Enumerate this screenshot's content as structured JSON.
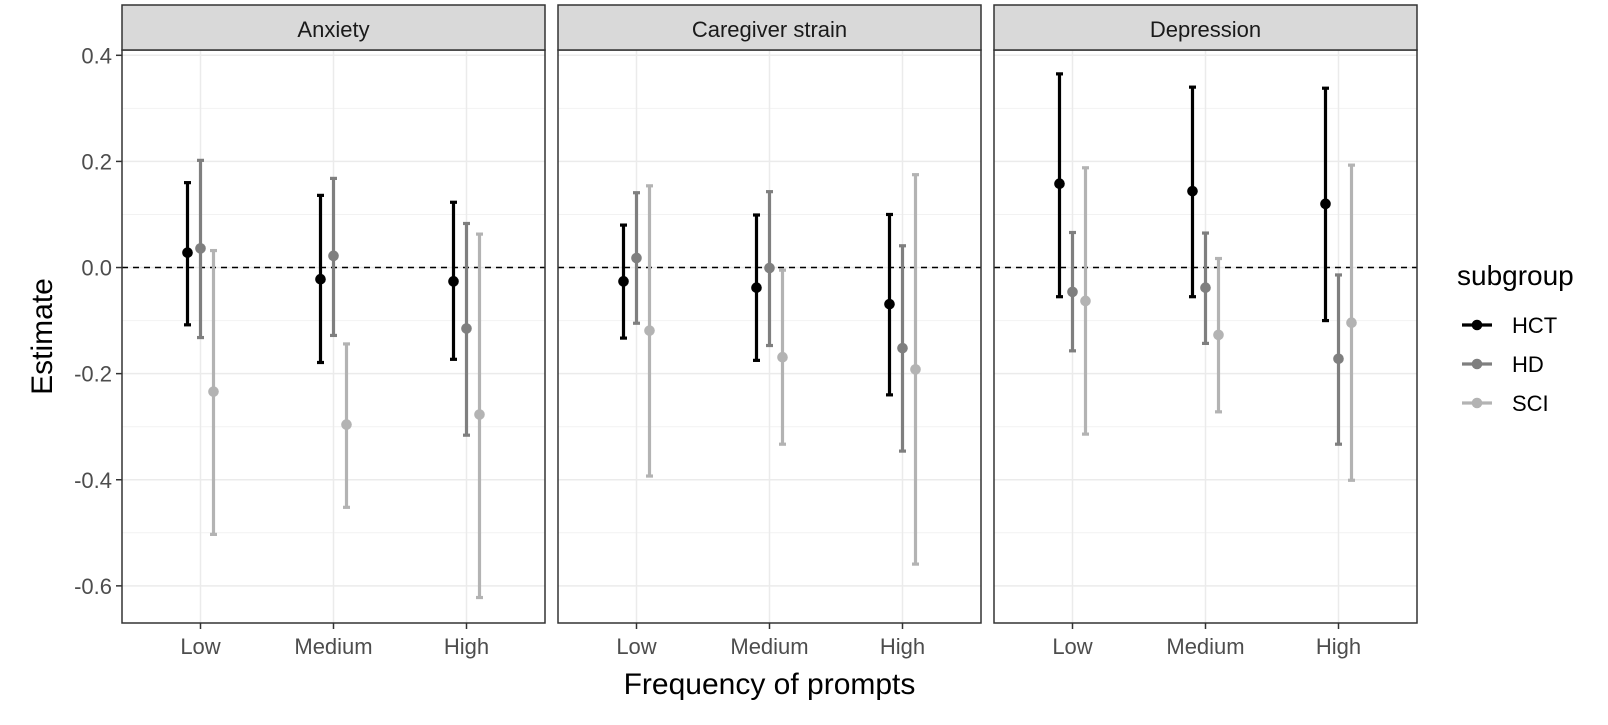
{
  "chart_data": {
    "type": "scatter",
    "subtype": "point-range (estimate with error bars), faceted",
    "xlabel": "Frequency of prompts",
    "ylabel": "Estimate",
    "categories": [
      "Low",
      "Medium",
      "High"
    ],
    "ylim": [
      -0.67,
      0.41
    ],
    "yticks": [
      0.4,
      0.2,
      0.0,
      -0.2,
      -0.4,
      -0.6
    ],
    "ytick_labels": [
      "0.4",
      "0.2",
      "0.0",
      "-0.2",
      "-0.4",
      "-0.6"
    ],
    "reference_line": {
      "y": 0.0,
      "style": "dashed"
    },
    "grid": true,
    "legend": {
      "title": "subgroup",
      "position": "right",
      "entries": [
        {
          "name": "HCT",
          "color": "#000000"
        },
        {
          "name": "HD",
          "color": "#7f7f7f"
        },
        {
          "name": "SCI",
          "color": "#b3b3b3"
        }
      ]
    },
    "facets": [
      {
        "title": "Anxiety",
        "series": [
          {
            "name": "HCT",
            "estimate": [
              0.028,
              -0.022,
              -0.026
            ],
            "lower": [
              -0.108,
              -0.179,
              -0.173
            ],
            "upper": [
              0.16,
              0.136,
              0.123
            ]
          },
          {
            "name": "HD",
            "estimate": [
              0.036,
              0.022,
              -0.115
            ],
            "lower": [
              -0.132,
              -0.128,
              -0.316
            ],
            "upper": [
              0.202,
              0.168,
              0.083
            ]
          },
          {
            "name": "SCI",
            "estimate": [
              -0.234,
              -0.296,
              -0.277
            ],
            "lower": [
              -0.503,
              -0.452,
              -0.622
            ],
            "upper": [
              0.032,
              -0.144,
              0.063
            ]
          }
        ]
      },
      {
        "title": "Caregiver strain",
        "series": [
          {
            "name": "HCT",
            "estimate": [
              -0.026,
              -0.038,
              -0.069
            ],
            "lower": [
              -0.133,
              -0.175,
              -0.24
            ],
            "upper": [
              0.08,
              0.099,
              0.1
            ]
          },
          {
            "name": "HD",
            "estimate": [
              0.018,
              -0.001,
              -0.152
            ],
            "lower": [
              -0.105,
              -0.147,
              -0.346
            ],
            "upper": [
              0.141,
              0.143,
              0.041
            ]
          },
          {
            "name": "SCI",
            "estimate": [
              -0.119,
              -0.169,
              -0.192
            ],
            "lower": [
              -0.393,
              -0.333,
              -0.559
            ],
            "upper": [
              0.154,
              -0.005,
              0.175
            ]
          }
        ]
      },
      {
        "title": "Depression",
        "series": [
          {
            "name": "HCT",
            "estimate": [
              0.158,
              0.144,
              0.12
            ],
            "lower": [
              -0.055,
              -0.055,
              -0.1
            ],
            "upper": [
              0.365,
              0.34,
              0.338
            ]
          },
          {
            "name": "HD",
            "estimate": [
              -0.046,
              -0.038,
              -0.172
            ],
            "lower": [
              -0.157,
              -0.143,
              -0.333
            ],
            "upper": [
              0.066,
              0.065,
              -0.014
            ]
          },
          {
            "name": "SCI",
            "estimate": [
              -0.063,
              -0.127,
              -0.104
            ],
            "lower": [
              -0.314,
              -0.272,
              -0.401
            ],
            "upper": [
              0.188,
              0.017,
              0.193
            ]
          }
        ]
      }
    ]
  }
}
